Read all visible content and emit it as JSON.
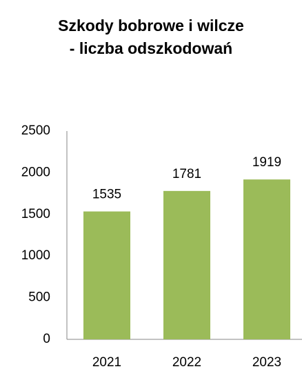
{
  "chart_data": {
    "type": "bar",
    "title": [
      "Szkody bobrowe i wilcze",
      "- liczba odszkodowań"
    ],
    "categories": [
      "2021",
      "2022",
      "2023"
    ],
    "values": [
      1535,
      1781,
      1919
    ],
    "color": "#9bbb59",
    "ylim": [
      0,
      2500
    ],
    "yticks": [
      0,
      500,
      1000,
      1500,
      2000,
      2500
    ],
    "grid": false
  }
}
